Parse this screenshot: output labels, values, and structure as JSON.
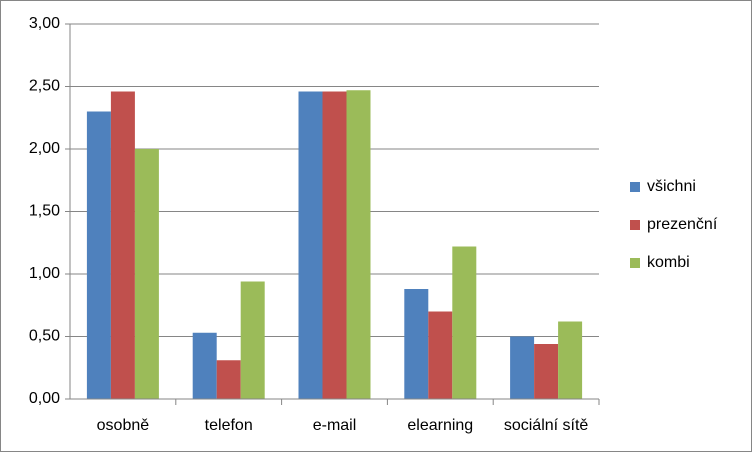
{
  "chart_data": {
    "type": "bar",
    "categories": [
      "osobně",
      "telefon",
      "e-mail",
      "elearning",
      "sociální sítě"
    ],
    "series": [
      {
        "name": "všichni",
        "color": "#4f81bd",
        "values": [
          2.3,
          0.53,
          2.46,
          0.88,
          0.5
        ]
      },
      {
        "name": "prezenční",
        "color": "#c0504d",
        "values": [
          2.46,
          0.31,
          2.46,
          0.7,
          0.44
        ]
      },
      {
        "name": "kombi",
        "color": "#9bbb59",
        "values": [
          2.0,
          0.94,
          2.47,
          1.22,
          0.62
        ]
      }
    ],
    "ylim": [
      0,
      3
    ],
    "yticks": [
      {
        "value": 0,
        "label": "0,00"
      },
      {
        "value": 0.5,
        "label": "0,50"
      },
      {
        "value": 1,
        "label": "1,00"
      },
      {
        "value": 1.5,
        "label": "1,50"
      },
      {
        "value": 2,
        "label": "2,00"
      },
      {
        "value": 2.5,
        "label": "2,50"
      },
      {
        "value": 3,
        "label": "3,00"
      }
    ],
    "grid": true,
    "legend": "right"
  }
}
